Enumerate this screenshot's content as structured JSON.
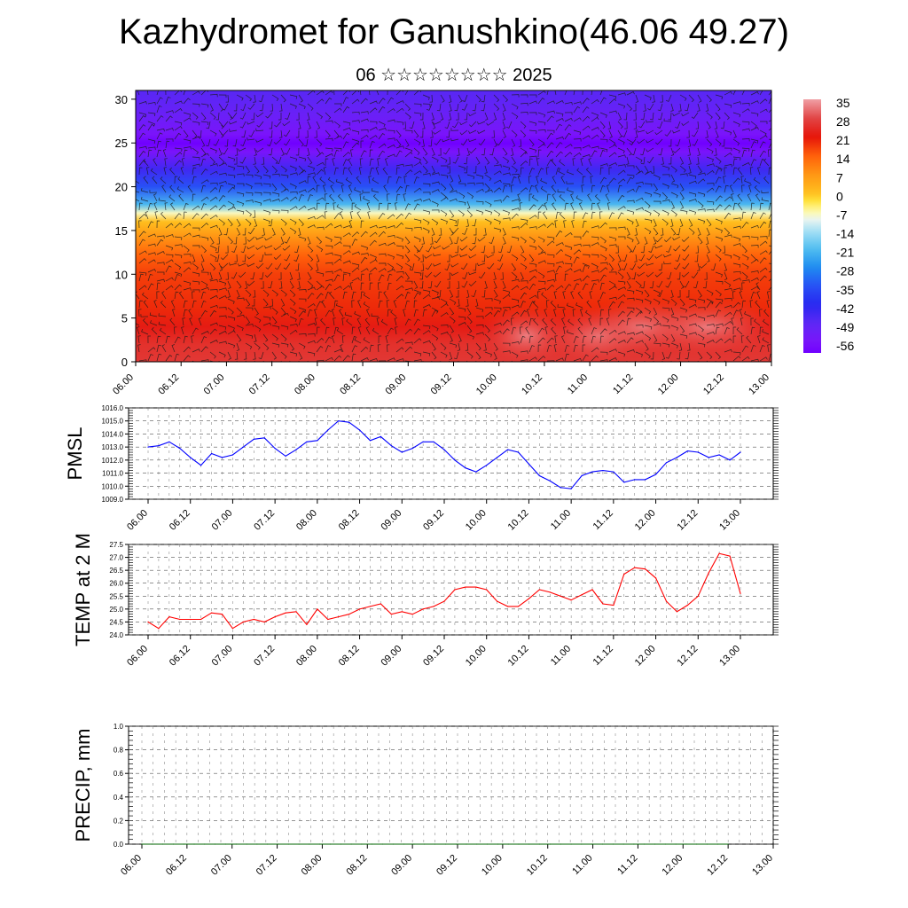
{
  "header": {
    "title": "Kazhydromet for Ganushkino(46.06 49.27)",
    "subtitle": "06 ☆☆☆☆☆☆☆☆ 2025"
  },
  "chart_data": [
    {
      "type": "heatmap",
      "title": "",
      "xlabel": "",
      "ylabel": "",
      "x_tick_labels": [
        "06.00",
        "06.12",
        "07.00",
        "07.12",
        "08.00",
        "08.12",
        "09.00",
        "09.12",
        "10.00",
        "10.12",
        "11.00",
        "11.12",
        "12.00",
        "12.12",
        "13.00"
      ],
      "y_ticks": [
        0,
        5,
        10,
        15,
        20,
        25,
        30
      ],
      "ylim": [
        0,
        31
      ],
      "colorbar_labels": [
        "35",
        "28",
        "21",
        "14",
        "7",
        "0",
        "-7",
        "-14",
        "-21",
        "-28",
        "-35",
        "-42",
        "-49",
        "-56"
      ],
      "colorbar_values": [
        35,
        28,
        21,
        14,
        7,
        0,
        -7,
        -14,
        -21,
        -28,
        -35,
        -42,
        -49,
        -56
      ],
      "vertical_profile": {
        "levels": [
          0,
          2,
          4,
          6,
          8,
          10,
          12,
          14,
          16,
          17,
          18,
          20,
          22,
          24,
          25,
          26,
          28,
          31
        ],
        "temps": [
          26,
          25,
          22,
          19,
          18,
          17,
          14,
          8,
          0,
          -8,
          -22,
          -35,
          -45,
          -56,
          -60,
          -56,
          -52,
          -48
        ]
      },
      "warm_spots": [
        {
          "x": 8.6,
          "y": 3,
          "value": 30
        },
        {
          "x": 10.2,
          "y": 3,
          "value": 32
        },
        {
          "x": 11.2,
          "y": 4,
          "value": 33
        },
        {
          "x": 12.6,
          "y": 4,
          "value": 35
        }
      ],
      "overlay": "wind barbs"
    },
    {
      "type": "line",
      "ylabel": "PMSL",
      "ylim": [
        1009.0,
        1016.0
      ],
      "y_tick_labels": [
        "1009.0",
        "1010.0",
        "1011.0",
        "1012.0",
        "1013.0",
        "1014.0",
        "1015.0",
        "1016.0"
      ],
      "x_tick_labels": [
        "06.00",
        "06.12",
        "07.00",
        "07.12",
        "08.00",
        "08.12",
        "09.00",
        "09.12",
        "10.00",
        "10.12",
        "11.00",
        "11.12",
        "12.00",
        "12.12",
        "13.00"
      ],
      "series": [
        {
          "color": "#0000ff",
          "values": [
            1013.0,
            1013.1,
            1013.4,
            1012.9,
            1012.2,
            1011.6,
            1012.5,
            1012.2,
            1012.4,
            1013.0,
            1013.6,
            1013.7,
            1012.9,
            1012.3,
            1012.8,
            1013.4,
            1013.5,
            1014.3,
            1015.0,
            1014.9,
            1014.3,
            1013.5,
            1013.8,
            1013.1,
            1012.6,
            1012.9,
            1013.4,
            1013.4,
            1012.8,
            1012.0,
            1011.4,
            1011.1,
            1011.6,
            1012.2,
            1012.8,
            1012.6,
            1011.7,
            1010.8,
            1010.4,
            1009.9,
            1009.8,
            1010.8,
            1011.1,
            1011.2,
            1011.1,
            1010.3,
            1010.5,
            1010.5,
            1010.9,
            1011.8,
            1012.2,
            1012.7,
            1012.6,
            1012.2,
            1012.4,
            1012.0,
            1012.6
          ]
        }
      ]
    },
    {
      "type": "line",
      "ylabel": "TEMP at 2 M",
      "ylim": [
        24.0,
        27.5
      ],
      "y_tick_labels": [
        "24.0",
        "24.5",
        "25.0",
        "25.5",
        "26.0",
        "26.5",
        "27.0",
        "27.5"
      ],
      "x_tick_labels": [
        "06.00",
        "06.12",
        "07.00",
        "07.12",
        "08.00",
        "08.12",
        "09.00",
        "09.12",
        "10.00",
        "10.12",
        "11.00",
        "11.12",
        "12.00",
        "12.12",
        "13.00"
      ],
      "series": [
        {
          "color": "#ff0000",
          "values": [
            24.5,
            24.25,
            24.7,
            24.6,
            24.6,
            24.6,
            24.85,
            24.8,
            24.25,
            24.5,
            24.6,
            24.5,
            24.7,
            24.85,
            24.9,
            24.4,
            25.0,
            24.6,
            24.7,
            24.8,
            25.0,
            25.1,
            25.2,
            24.8,
            24.9,
            24.8,
            25.0,
            25.1,
            25.3,
            25.75,
            25.85,
            25.85,
            25.75,
            25.3,
            25.1,
            25.1,
            25.4,
            25.75,
            25.65,
            25.5,
            25.35,
            25.55,
            25.75,
            25.2,
            25.15,
            26.35,
            26.6,
            26.55,
            26.2,
            25.3,
            24.9,
            25.15,
            25.5,
            26.4,
            27.15,
            27.05,
            25.6
          ]
        }
      ]
    },
    {
      "type": "line",
      "ylabel": "PRECIP, mm",
      "ylim": [
        0.0,
        1.0
      ],
      "y_tick_labels": [
        "0.0",
        "0.2",
        "0.4",
        "0.6",
        "0.8",
        "1.0"
      ],
      "x_tick_labels": [
        "06.00",
        "06.12",
        "07.00",
        "07.12",
        "08.00",
        "08.12",
        "09.00",
        "09.12",
        "10.00",
        "10.12",
        "11.00",
        "11.12",
        "12.00",
        "12.12",
        "13.00"
      ],
      "series": [
        {
          "color": "#006400",
          "values": [
            0,
            0,
            0,
            0,
            0,
            0,
            0,
            0,
            0,
            0,
            0,
            0,
            0,
            0,
            0,
            0,
            0,
            0,
            0,
            0,
            0,
            0,
            0,
            0,
            0,
            0,
            0,
            0,
            0,
            0,
            0,
            0,
            0,
            0,
            0,
            0,
            0,
            0,
            0,
            0,
            0,
            0,
            0,
            0,
            0,
            0,
            0,
            0,
            0,
            0,
            0,
            0,
            0,
            0,
            0,
            0,
            0
          ]
        }
      ]
    }
  ]
}
